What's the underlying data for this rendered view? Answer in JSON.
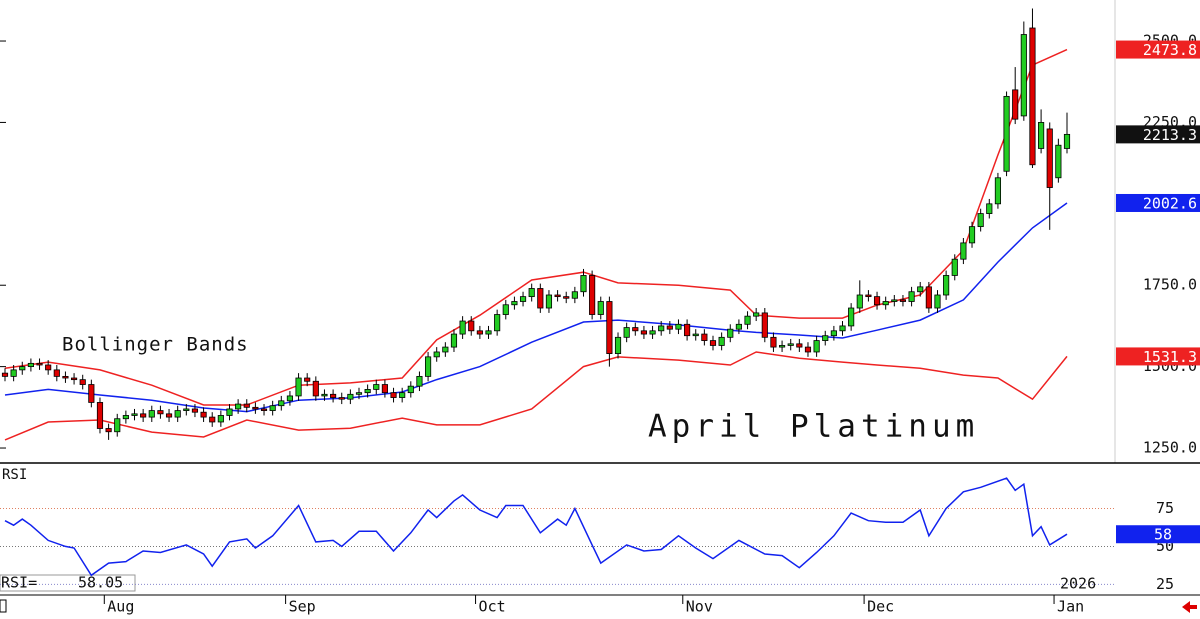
{
  "chart_data": [
    {
      "type": "candlestick",
      "title": "April Platinum",
      "annotation": "Bollinger Bands",
      "categories": [
        null,
        null,
        null,
        null,
        null,
        null,
        null,
        null,
        null,
        null,
        null,
        null,
        "Aug",
        null,
        null,
        null,
        null,
        null,
        null,
        null,
        null,
        null,
        null,
        null,
        null,
        null,
        null,
        null,
        null,
        null,
        null,
        null,
        null,
        "Sep",
        null,
        null,
        null,
        null,
        null,
        null,
        null,
        null,
        null,
        null,
        null,
        null,
        null,
        null,
        null,
        null,
        null,
        null,
        null,
        null,
        null,
        "Oct",
        null,
        null,
        null,
        null,
        null,
        null,
        null,
        null,
        null,
        null,
        null,
        null,
        null,
        null,
        null,
        null,
        null,
        null,
        null,
        null,
        null,
        null,
        null,
        "Nov",
        null,
        null,
        null,
        null,
        null,
        null,
        null,
        null,
        null,
        null,
        null,
        null,
        null,
        null,
        null,
        null,
        null,
        null,
        null,
        null,
        "Dec",
        null,
        null,
        null,
        null,
        null,
        null,
        null,
        null,
        null,
        null,
        null,
        null,
        null,
        null,
        null,
        null,
        null,
        null,
        null,
        null,
        null,
        "Jan",
        null
      ],
      "open": [
        1480,
        1470,
        1490,
        1500,
        1510,
        1505,
        1490,
        1470,
        1465,
        1460,
        1445,
        1390,
        1310,
        1300,
        1340,
        1350,
        1355,
        1345,
        1365,
        1355,
        1345,
        1365,
        1370,
        1360,
        1345,
        1330,
        1350,
        1370,
        1385,
        1375,
        1370,
        1365,
        1380,
        1395,
        1410,
        1465,
        1455,
        1410,
        1415,
        1405,
        1400,
        1415,
        1420,
        1430,
        1445,
        1420,
        1405,
        1420,
        1440,
        1470,
        1530,
        1545,
        1560,
        1600,
        1640,
        1610,
        1600,
        1610,
        1660,
        1690,
        1700,
        1715,
        1740,
        1680,
        1720,
        1715,
        1710,
        1730,
        1780,
        1660,
        1700,
        1540,
        1590,
        1620,
        1610,
        1600,
        1610,
        1625,
        1615,
        1630,
        1595,
        1600,
        1580,
        1565,
        1590,
        1615,
        1630,
        1655,
        1665,
        1590,
        1560,
        1565,
        1570,
        1560,
        1545,
        1580,
        1595,
        1610,
        1625,
        1680,
        1720,
        1715,
        1690,
        1700,
        1705,
        1700,
        1730,
        1745,
        1680,
        1720,
        1780,
        1830,
        1880,
        1930,
        1970,
        2000,
        2100,
        2350,
        2270,
        2540,
        2170,
        2230,
        2080,
        2170
      ],
      "high": [
        1495,
        1505,
        1515,
        1525,
        1525,
        1520,
        1505,
        1485,
        1480,
        1475,
        1460,
        1405,
        1325,
        1355,
        1365,
        1370,
        1370,
        1380,
        1380,
        1370,
        1380,
        1385,
        1385,
        1375,
        1360,
        1365,
        1385,
        1400,
        1400,
        1390,
        1385,
        1395,
        1410,
        1425,
        1480,
        1480,
        1470,
        1430,
        1430,
        1420,
        1430,
        1435,
        1445,
        1460,
        1460,
        1435,
        1435,
        1455,
        1485,
        1545,
        1560,
        1575,
        1615,
        1655,
        1655,
        1625,
        1625,
        1675,
        1705,
        1715,
        1730,
        1755,
        1755,
        1735,
        1735,
        1730,
        1745,
        1800,
        1795,
        1715,
        1715,
        1605,
        1635,
        1635,
        1625,
        1625,
        1640,
        1640,
        1645,
        1645,
        1615,
        1615,
        1595,
        1605,
        1630,
        1645,
        1670,
        1680,
        1680,
        1605,
        1580,
        1585,
        1585,
        1575,
        1595,
        1610,
        1625,
        1640,
        1695,
        1765,
        1735,
        1730,
        1715,
        1720,
        1720,
        1745,
        1760,
        1760,
        1735,
        1795,
        1845,
        1895,
        1945,
        1985,
        2015,
        2095,
        2345,
        2420,
        2560,
        2600,
        2290,
        2250,
        2200,
        2280
      ],
      "low": [
        1455,
        1455,
        1475,
        1485,
        1490,
        1475,
        1455,
        1450,
        1445,
        1430,
        1375,
        1295,
        1275,
        1285,
        1325,
        1335,
        1330,
        1330,
        1340,
        1330,
        1330,
        1350,
        1345,
        1330,
        1315,
        1315,
        1335,
        1355,
        1360,
        1355,
        1350,
        1350,
        1365,
        1380,
        1395,
        1440,
        1395,
        1395,
        1390,
        1385,
        1385,
        1400,
        1405,
        1415,
        1405,
        1390,
        1390,
        1405,
        1425,
        1455,
        1515,
        1530,
        1545,
        1585,
        1595,
        1585,
        1585,
        1595,
        1645,
        1675,
        1685,
        1700,
        1665,
        1665,
        1700,
        1695,
        1695,
        1715,
        1645,
        1645,
        1500,
        1525,
        1575,
        1595,
        1585,
        1585,
        1595,
        1600,
        1600,
        1580,
        1580,
        1565,
        1550,
        1550,
        1575,
        1600,
        1615,
        1640,
        1575,
        1545,
        1545,
        1550,
        1545,
        1530,
        1530,
        1565,
        1580,
        1595,
        1610,
        1665,
        1700,
        1675,
        1675,
        1685,
        1685,
        1685,
        1715,
        1665,
        1665,
        1705,
        1765,
        1815,
        1865,
        1915,
        1955,
        1985,
        2085,
        2245,
        2255,
        2110,
        2155,
        1920,
        2065,
        2155
      ],
      "close": [
        1470,
        1490,
        1500,
        1510,
        1505,
        1490,
        1470,
        1465,
        1460,
        1445,
        1390,
        1310,
        1300,
        1340,
        1350,
        1355,
        1345,
        1365,
        1355,
        1345,
        1365,
        1370,
        1360,
        1345,
        1330,
        1350,
        1370,
        1385,
        1375,
        1370,
        1365,
        1380,
        1395,
        1410,
        1465,
        1455,
        1410,
        1415,
        1405,
        1400,
        1415,
        1420,
        1430,
        1445,
        1420,
        1405,
        1420,
        1440,
        1470,
        1530,
        1545,
        1560,
        1600,
        1640,
        1610,
        1600,
        1610,
        1660,
        1690,
        1700,
        1715,
        1740,
        1680,
        1720,
        1715,
        1710,
        1730,
        1780,
        1660,
        1700,
        1540,
        1590,
        1620,
        1610,
        1600,
        1610,
        1625,
        1615,
        1630,
        1595,
        1600,
        1580,
        1565,
        1590,
        1615,
        1630,
        1655,
        1665,
        1590,
        1560,
        1565,
        1570,
        1560,
        1545,
        1580,
        1595,
        1610,
        1625,
        1680,
        1720,
        1715,
        1690,
        1700,
        1705,
        1700,
        1730,
        1745,
        1680,
        1720,
        1780,
        1830,
        1880,
        1930,
        1970,
        2000,
        2080,
        2330,
        2260,
        2520,
        2120,
        2250,
        2050,
        2180,
        2213.3
      ],
      "up_color": "#22cc22",
      "down_color": "#dd0000",
      "close_box_color": "#111111",
      "bands": {
        "x": [
          0,
          5,
          11,
          17,
          23,
          28,
          34,
          40,
          46,
          50,
          55,
          61,
          67,
          71,
          78,
          84,
          87,
          92,
          97,
          101,
          106,
          111,
          115,
          119,
          123
        ],
        "upper": [
          1495,
          1514,
          1490,
          1443,
          1382,
          1382,
          1443,
          1450,
          1465,
          1582,
          1658,
          1766,
          1790,
          1757,
          1750,
          1735,
          1658,
          1649,
          1649,
          1689,
          1720,
          1858,
          2150,
          2426,
          2473.8
        ],
        "middle": [
          1413,
          1430,
          1413,
          1397,
          1373,
          1362,
          1397,
          1404,
          1422,
          1460,
          1500,
          1575,
          1637,
          1643,
          1628,
          1612,
          1605,
          1597,
          1588,
          1612,
          1643,
          1705,
          1821,
          1926,
          2002.6
        ],
        "lower": [
          1275,
          1330,
          1336,
          1299,
          1284,
          1336,
          1305,
          1311,
          1342,
          1321,
          1321,
          1370,
          1500,
          1530,
          1520,
          1505,
          1545,
          1526,
          1514,
          1505,
          1495,
          1474,
          1465,
          1400,
          1531.3
        ],
        "upper_color": "#ee2222",
        "middle_color": "#1122ee",
        "lower_color": "#ee2222"
      },
      "ylim": [
        1204,
        2626
      ],
      "yticks": [
        {
          "value": 1250,
          "label": "1250.0"
        },
        {
          "value": 1500,
          "label": "1500.0"
        },
        {
          "value": 1750,
          "label": "1750.0"
        },
        {
          "value": 2250,
          "label": "2250.0"
        },
        {
          "value": 2500,
          "label": "2500.0"
        }
      ]
    },
    {
      "type": "line",
      "title": "RSI",
      "readout_label": "RSI=",
      "year_label": "2026",
      "x": [
        0,
        1,
        2,
        3,
        5,
        7,
        8,
        10,
        12,
        14,
        16,
        18,
        21,
        23,
        24,
        26,
        28,
        29,
        31,
        34,
        36,
        38,
        39,
        41,
        43,
        45,
        47,
        49,
        50,
        52,
        53,
        55,
        57,
        58,
        60,
        62,
        64,
        65,
        66,
        68,
        69,
        72,
        74,
        76,
        78,
        80,
        82,
        85,
        86,
        88,
        90,
        92,
        94,
        96,
        98,
        100,
        102,
        104,
        106,
        107,
        109,
        111,
        113,
        116,
        117,
        118,
        119,
        120,
        121,
        123
      ],
      "values": [
        67,
        64,
        68,
        64,
        54,
        50,
        49,
        31,
        39,
        40,
        47,
        46,
        51,
        45,
        37,
        53,
        55,
        49,
        57,
        77,
        53,
        54,
        50,
        60,
        60,
        47,
        59,
        74,
        69,
        80,
        84,
        74,
        69,
        77,
        77,
        59,
        68,
        64,
        75,
        51,
        39,
        51,
        47,
        48,
        57,
        49,
        42,
        54,
        51,
        45,
        44,
        36,
        46,
        57,
        72,
        67,
        66,
        66,
        74,
        57,
        75,
        86,
        89,
        95,
        87,
        91,
        57,
        63,
        51,
        58.05
      ],
      "last_value_label": "58",
      "color": "#1122ee",
      "ylim": [
        18,
        105
      ],
      "yticks": [
        25,
        50,
        75
      ],
      "grid": true,
      "grid_colors": [
        "#8888cc",
        "#777777",
        "#e08060"
      ]
    }
  ]
}
